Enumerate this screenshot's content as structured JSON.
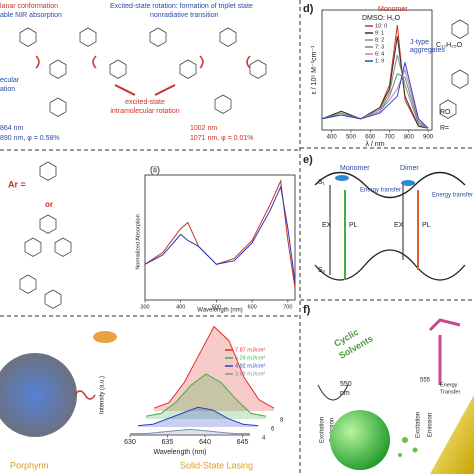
{
  "top_left": {
    "planar": "lanar conformation",
    "nir": "able NIR absorption",
    "heading": [
      "Excited-state rotation: formation of triplet state",
      "nonradiative transition"
    ],
    "left_cut": [
      "ecular",
      "ation"
    ],
    "rotation": [
      "excited-state",
      "intramolecular rotation"
    ],
    "left_values": [
      "864 nm",
      "890 nm, φ = 0.58%"
    ],
    "right_values": [
      "1002 nm",
      "1071 nm, φ = 0.01%"
    ]
  },
  "panel_d": {
    "label": "d)",
    "legend_title": "DMSO: H₂O",
    "monomer": "Monomer",
    "jtype": [
      "J-type",
      "aggregates"
    ],
    "ylabel": "ε / 10⁵ M⁻¹cm⁻¹",
    "xlabel": "λ / nm",
    "side_text": [
      "C₁₂H₂₅O",
      "RO",
      "R="
    ],
    "chart": {
      "type": "line",
      "x": [
        350,
        450,
        550,
        650,
        700,
        740,
        780,
        850,
        900
      ],
      "xlim": [
        350,
        920
      ],
      "xticks": [
        400,
        500,
        600,
        700,
        800,
        900
      ],
      "ylim": [
        0,
        3.2
      ],
      "series": [
        {
          "name": "10: 0",
          "color": "#d8302a",
          "values": [
            0.3,
            0.5,
            0.3,
            0.6,
            1.2,
            2.8,
            0.8,
            0.1,
            0.05
          ]
        },
        {
          "name": "9: 1",
          "color": "#333333",
          "values": [
            0.3,
            0.5,
            0.3,
            0.6,
            1.1,
            2.5,
            0.9,
            0.1,
            0.05
          ]
        },
        {
          "name": "8: 2",
          "color": "#8a8a8a",
          "values": [
            0.3,
            0.45,
            0.3,
            0.55,
            1.0,
            2.0,
            1.2,
            0.15,
            0.05
          ]
        },
        {
          "name": "7: 3",
          "color": "#5a9a5a",
          "values": [
            0.3,
            0.45,
            0.3,
            0.5,
            0.9,
            1.5,
            1.4,
            0.2,
            0.05
          ]
        },
        {
          "name": "6: 4",
          "color": "#d878b8",
          "values": [
            0.3,
            0.4,
            0.3,
            0.5,
            0.8,
            1.1,
            1.6,
            0.25,
            0.05
          ]
        },
        {
          "name": "1: 9",
          "color": "#2a48c0",
          "values": [
            0.3,
            0.4,
            0.3,
            0.45,
            0.7,
            0.9,
            1.8,
            0.3,
            0.05
          ]
        }
      ]
    }
  },
  "panel_ii": {
    "ar": "Ar =",
    "or": "or",
    "label": "(ii)",
    "ylabel": "Normalized Absorption",
    "xlabel": "Wavelength (nm)",
    "chart": {
      "type": "line",
      "x": [
        300,
        350,
        400,
        420,
        450,
        500,
        550,
        600,
        650,
        680,
        700,
        720
      ],
      "xlim": [
        300,
        720
      ],
      "xticks": [
        300,
        400,
        500,
        600,
        700
      ],
      "ylim": [
        0,
        1.05
      ],
      "series": [
        {
          "color": "#c8322a",
          "values": [
            0.3,
            0.4,
            0.6,
            0.65,
            0.45,
            0.3,
            0.35,
            0.5,
            0.8,
            1.0,
            0.5,
            0.1
          ]
        },
        {
          "color": "#2a3ab0",
          "values": [
            0.3,
            0.38,
            0.55,
            0.5,
            0.45,
            0.3,
            0.33,
            0.48,
            0.75,
            0.95,
            0.6,
            0.15
          ]
        }
      ]
    }
  },
  "panel_e": {
    "label": "e)",
    "s1": "S₁",
    "s0": "S₀",
    "monomer": "Monomer",
    "dimer": "Dimer",
    "ex": [
      "EX",
      "EX"
    ],
    "pl": [
      "PL",
      "PL"
    ],
    "transfer": [
      "Energy transfer",
      "Energy transfer"
    ]
  },
  "panel_lasing": {
    "porphyrin": "Porphyrin",
    "caption": "Solid-State Lasing",
    "ylabel": "Intensity (a.u.)",
    "xlabel": "Wavelength (nm)",
    "depth_ticks": [
      4,
      6,
      8
    ],
    "chart": {
      "type": "line",
      "x": [
        630,
        632,
        634,
        636,
        638,
        640,
        642,
        644,
        646
      ],
      "xlim": [
        630,
        646
      ],
      "xticks": [
        630,
        635,
        640,
        645
      ],
      "ylim": [
        0,
        3.2
      ],
      "series": [
        {
          "name": "7.87 mJ/cm²",
          "color": "#e0302a",
          "values": [
            0.1,
            0.3,
            1.0,
            2.0,
            3.0,
            2.5,
            1.2,
            0.4,
            0.1
          ]
        },
        {
          "name": "5.24 mJ/cm²",
          "color": "#3cb043",
          "values": [
            0.1,
            0.2,
            0.6,
            1.2,
            1.6,
            1.3,
            0.7,
            0.2,
            0.1
          ]
        },
        {
          "name": "4.92 mJ/cm²",
          "color": "#2d3fc8",
          "values": [
            0.05,
            0.1,
            0.3,
            0.5,
            0.7,
            0.6,
            0.3,
            0.1,
            0.05
          ]
        },
        {
          "name": "3.69 mJ/cm²",
          "color": "#7a8fb0",
          "values": [
            0.05,
            0.05,
            0.1,
            0.15,
            0.2,
            0.15,
            0.1,
            0.05,
            0.05
          ]
        }
      ]
    }
  },
  "panel_f": {
    "label": "f)",
    "solvents": [
      "Cyclic",
      "Solvents"
    ],
    "wavelength": [
      "550",
      "nm"
    ],
    "excitation": [
      "Excitation",
      "Excitation"
    ],
    "emission": [
      "Emission",
      "Emission"
    ],
    "value": "555",
    "transfer": [
      "Energy",
      "Transfer"
    ]
  }
}
